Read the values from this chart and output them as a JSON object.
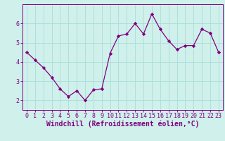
{
  "x": [
    0,
    1,
    2,
    3,
    4,
    5,
    6,
    7,
    8,
    9,
    10,
    11,
    12,
    13,
    14,
    15,
    16,
    17,
    18,
    19,
    20,
    21,
    22,
    23
  ],
  "y": [
    4.5,
    4.1,
    3.7,
    3.2,
    2.6,
    2.2,
    2.5,
    2.0,
    2.55,
    2.6,
    4.45,
    5.35,
    5.45,
    6.0,
    5.45,
    6.5,
    5.7,
    5.1,
    4.65,
    4.85,
    4.85,
    5.7,
    5.5,
    4.5
  ],
  "line_color": "#800080",
  "marker": "D",
  "marker_size": 2.2,
  "bg_color": "#cff0eb",
  "grid_color": "#aaddd8",
  "xlabel": "Windchill (Refroidissement éolien,°C)",
  "ylabel": "",
  "ylim": [
    1.5,
    7.0
  ],
  "xlim": [
    -0.5,
    23.5
  ],
  "yticks": [
    2,
    3,
    4,
    5,
    6
  ],
  "xticks": [
    0,
    1,
    2,
    3,
    4,
    5,
    6,
    7,
    8,
    9,
    10,
    11,
    12,
    13,
    14,
    15,
    16,
    17,
    18,
    19,
    20,
    21,
    22,
    23
  ],
  "tick_fontsize": 6.0,
  "xlabel_fontsize": 7.0,
  "spine_color": "#800080",
  "line_width": 0.9
}
